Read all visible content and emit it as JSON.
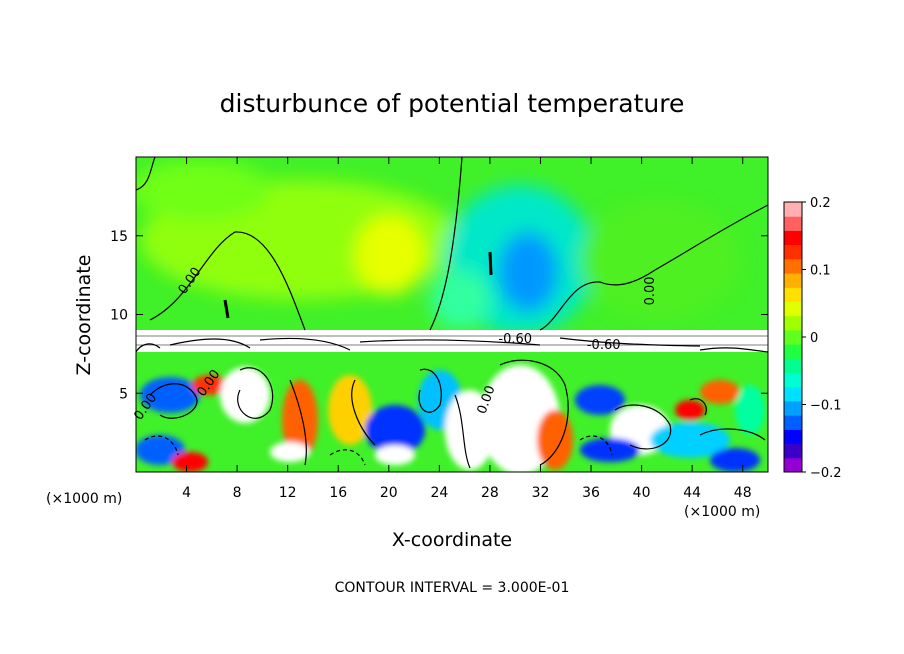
{
  "chart_data": {
    "type": "heatmap",
    "title": "disturbunce of potential temperature",
    "xlabel": "X-coordinate",
    "ylabel": "Z-coordinate",
    "x_unit": "(×1000 m)",
    "y_unit": "(×1000 m)",
    "xlim": [
      0,
      50
    ],
    "ylim": [
      0,
      20
    ],
    "x_ticks": [
      4,
      8,
      12,
      16,
      20,
      24,
      28,
      32,
      36,
      40,
      44,
      48
    ],
    "y_ticks": [
      5,
      10,
      15
    ],
    "colorbar": {
      "range": [
        -0.2,
        0.2
      ],
      "ticks": [
        {
          "value": 0.2,
          "label": "0.2"
        },
        {
          "value": 0.1,
          "label": "0.1"
        },
        {
          "value": 0,
          "label": "0"
        },
        {
          "value": -0.1,
          "label": "-0.1"
        },
        {
          "value": -0.2,
          "label": "-0.2"
        }
      ],
      "colors": [
        "#9400d3",
        "#3a00c8",
        "#0000ff",
        "#0060ff",
        "#00a0ff",
        "#00e0ff",
        "#00ffd0",
        "#00ff90",
        "#20ff40",
        "#60ff20",
        "#a0ff00",
        "#e0ff00",
        "#ffe000",
        "#ffb000",
        "#ff7000",
        "#ff3000",
        "#ff0000",
        "#ff6060",
        "#ffb0b0"
      ]
    },
    "contour_labels": [
      {
        "text": "0.00",
        "x": 4.5,
        "z": 12.0
      },
      {
        "text": "0.00",
        "x": 6.0,
        "z": 5.5
      },
      {
        "text": "0.00",
        "x": 41.0,
        "z": 11.5
      },
      {
        "text": "0.00",
        "x": 1.0,
        "z": 4.0
      },
      {
        "text": "0.00",
        "x": 28.0,
        "z": 4.5
      },
      {
        "text": "-0.60",
        "x": 30.0,
        "z": 8.2
      },
      {
        "text": "-0.60",
        "x": 37.0,
        "z": 7.8
      }
    ],
    "contour_interval_text": "CONTOUR INTERVAL = 3.000E-01"
  }
}
